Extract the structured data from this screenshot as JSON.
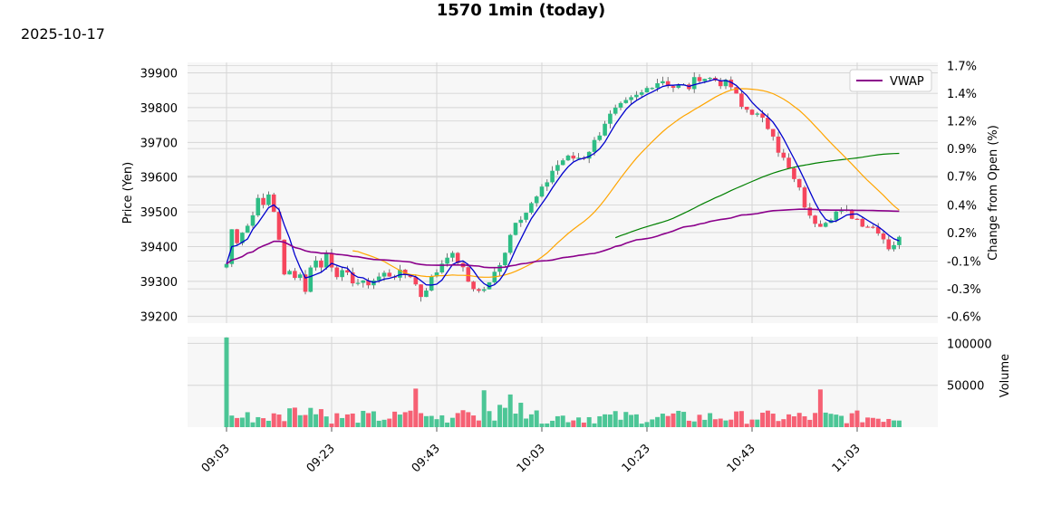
{
  "chart_data": {
    "type": "candlestick",
    "title": "1570 1min (today)",
    "date": "2025-10-17",
    "ylabel": "Price (Yen)",
    "ylabel_right": "Change from Open (%)",
    "volume_label": "Volume",
    "legend": [
      "VWAP"
    ],
    "legend_position": "top-right",
    "grid": true,
    "price_ylim": [
      39180,
      39930
    ],
    "volume_ylim": [
      0,
      108000
    ],
    "pct_ylim": [
      -0.63,
      1.73
    ],
    "yticks": [
      39200,
      39300,
      39400,
      39500,
      39600,
      39700,
      39800,
      39900
    ],
    "pct_ticks": [
      "1.7%",
      "1.4%",
      "1.2%",
      "0.9%",
      "0.7%",
      "0.4%",
      "0.2%",
      "-0.1%",
      "-0.3%",
      "-0.6%"
    ],
    "pct_values": [
      1.7,
      1.45,
      1.2,
      0.95,
      0.7,
      0.44,
      0.19,
      -0.07,
      -0.32,
      -0.57
    ],
    "volume_ticks": [
      100000,
      50000
    ],
    "x_tick_labels": [
      "09:03",
      "09:23",
      "09:43",
      "10:03",
      "10:23",
      "10:43",
      "11:03"
    ],
    "x_tick_index": [
      0,
      20,
      40,
      60,
      80,
      100,
      120
    ],
    "open_candles": [
      [
        39340,
        39350
      ],
      [
        39350,
        39450
      ],
      [
        39450,
        39410
      ],
      [
        39410,
        39440
      ],
      [
        39440,
        39460
      ],
      [
        39460,
        39490
      ],
      [
        39490,
        39540
      ],
      [
        39540,
        39520
      ],
      [
        39520,
        39550
      ],
      [
        39550,
        39500
      ],
      [
        39500,
        39420
      ],
      [
        39420,
        39320
      ],
      [
        39320,
        39330
      ],
      [
        39330,
        39310
      ],
      [
        39310,
        39320
      ],
      [
        39320,
        39270
      ],
      [
        39270,
        39340
      ],
      [
        39340,
        39360
      ],
      [
        39360,
        39340
      ],
      [
        39340,
        39380
      ],
      [
        39380,
        39340
      ]
    ],
    "colors": {
      "up": "#2ebd85",
      "down": "#f6465d",
      "vwap": "#8b008b",
      "fast_ma": "#0000cd",
      "mid_ma": "#ffa500",
      "slow_ma": "#008000",
      "plot_bg": "#f7f7f7",
      "grid": "#d6d6d6"
    }
  }
}
